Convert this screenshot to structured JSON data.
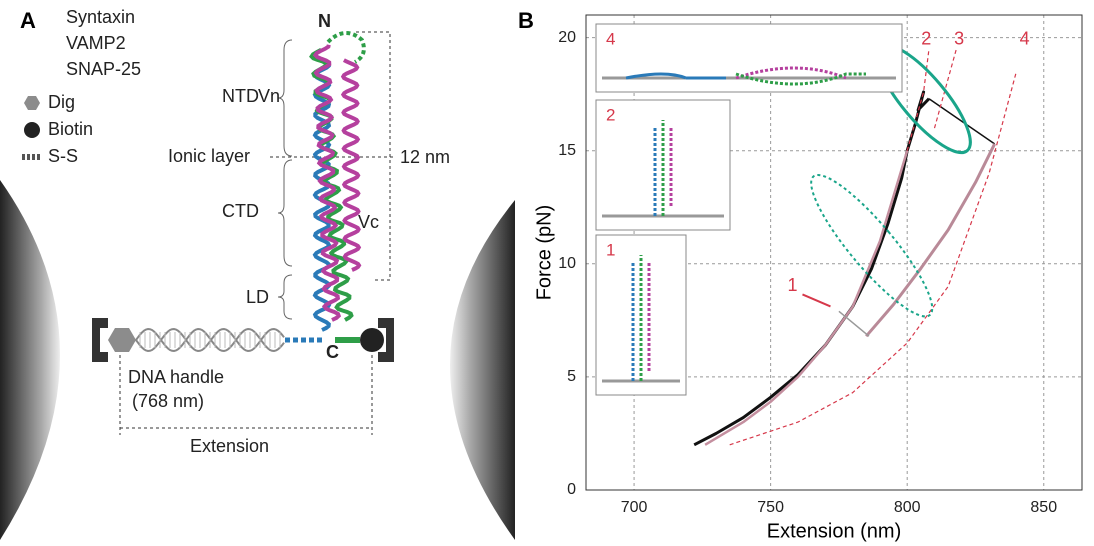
{
  "panel_a": {
    "panel_label": "A",
    "legend": [
      {
        "text": "Syntaxin",
        "color": "#2e9e48"
      },
      {
        "text": "VAMP2",
        "color": "#2a7ab8"
      },
      {
        "text": "SNAP-25",
        "color": "#b5409e"
      },
      {
        "text": "Dig",
        "color": "#8c8c8c"
      },
      {
        "text": "Biotin",
        "color": "#222222"
      },
      {
        "text": "S-S",
        "color": "#555555"
      }
    ],
    "labels": {
      "n_term": "N",
      "ntd": "NTD",
      "vn": "Vn",
      "ionic": "Ionic layer",
      "distance": "12 nm",
      "ctd": "CTD",
      "vc": "Vc",
      "ld": "LD",
      "c_term": "C",
      "handle": "DNA handle",
      "handle_length": "(768 nm)",
      "extension": "Extension"
    }
  },
  "chart_data": {
    "type": "line",
    "panel_label": "B",
    "xlabel": "Extension (nm)",
    "ylabel": "Force (pN)",
    "xlim": [
      682.4,
      864
    ],
    "ylim": [
      0,
      21
    ],
    "xticks": [
      700,
      750,
      800,
      850
    ],
    "yticks": [
      0,
      5,
      10,
      15,
      20
    ],
    "grid": true,
    "series": [
      {
        "color": "#111111",
        "dashed": false,
        "width": 3,
        "x": [
          722,
          730,
          740,
          750,
          760,
          770,
          780,
          787,
          793,
          798,
          800,
          803,
          806,
          804,
          808
        ],
        "values": [
          2,
          2.5,
          3.2,
          4.1,
          5.1,
          6.4,
          8.1,
          9.8,
          11.8,
          13.8,
          15.0,
          16.2,
          17.6,
          16.8,
          17.3
        ]
      },
      {
        "color": "#111111",
        "dashed": false,
        "width": 1.5,
        "x": [
          808,
          832
        ],
        "values": [
          17.3,
          15.3
        ]
      },
      {
        "color": "#c48f9f",
        "dashed": false,
        "width": 2.5,
        "x": [
          726,
          740,
          750,
          760,
          770,
          780,
          790,
          800
        ],
        "values": [
          2,
          3,
          3.9,
          5,
          6.4,
          8.1,
          11,
          15
        ]
      },
      {
        "color": "#b98a98",
        "dashed": false,
        "width": 3,
        "x": [
          785,
          795,
          805,
          815,
          825,
          832
        ],
        "values": [
          6.8,
          8.2,
          9.8,
          11.5,
          13.6,
          15.3
        ]
      },
      {
        "color": "#d6384a",
        "dashed": true,
        "width": 1.2,
        "x": [
          735,
          760,
          780,
          800,
          815,
          830,
          840
        ],
        "values": [
          2,
          3,
          4.3,
          6.5,
          9,
          14,
          18.5
        ]
      },
      {
        "color": "#d6384a",
        "dashed": true,
        "width": 1.2,
        "x": [
          800,
          806,
          808
        ],
        "values": [
          15,
          17.6,
          19.5
        ]
      },
      {
        "color": "#d6384a",
        "dashed": true,
        "width": 1.2,
        "x": [
          810,
          818
        ],
        "values": [
          16,
          19.5
        ]
      },
      {
        "color": "#999999",
        "dashed": false,
        "width": 1.5,
        "x": [
          775,
          786
        ],
        "values": [
          7.9,
          6.8
        ]
      }
    ],
    "highlights": [
      {
        "x": 806,
        "y": 17.3,
        "rx": 8,
        "ry": 3,
        "color": "#1aa58a",
        "dashed": false
      },
      {
        "x": 787,
        "y": 10.8,
        "rx": 8,
        "ry": 4,
        "color": "#1aa58a",
        "dashed": true
      }
    ],
    "annotations": [
      {
        "text": "2",
        "x": 807,
        "y": 19.9
      },
      {
        "text": "3",
        "x": 819,
        "y": 19.9
      },
      {
        "text": "4",
        "x": 843,
        "y": 19.9
      },
      {
        "text": "1",
        "x": 758,
        "y": 9.0
      }
    ],
    "insets": [
      "4",
      "2",
      "1"
    ]
  }
}
